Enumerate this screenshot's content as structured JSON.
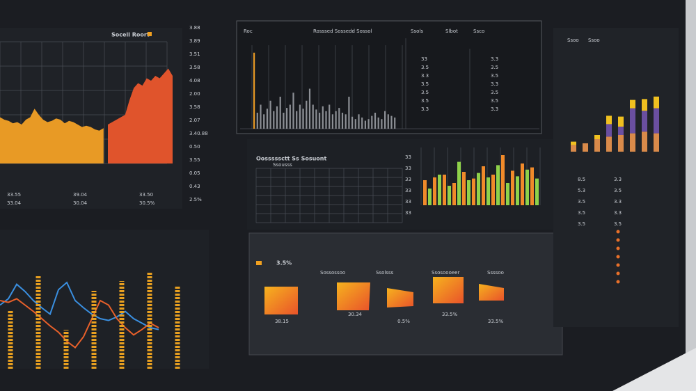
{
  "left_panel": {
    "title": "Socell Roort",
    "scale": [
      "3.88",
      "3.89",
      "3.51",
      "3.58",
      "4.08",
      "2.00",
      "3.58",
      "2.07",
      "3.40.88",
      "0.50",
      "3.55",
      "0.05",
      "0.43",
      "2.5%"
    ],
    "summary": [
      "33.55",
      "39.04",
      "33.50",
      "33.04",
      "30.04",
      "30.5%"
    ],
    "area": {
      "ylim": [
        0,
        100
      ],
      "series": [
        {
          "color": "#e89a25",
          "values": [
            38,
            36,
            35,
            33,
            34,
            32,
            36,
            38,
            45,
            40,
            36,
            34,
            35,
            37,
            36,
            33,
            35,
            34,
            32,
            30,
            31,
            30,
            28,
            27,
            29
          ]
        },
        {
          "color": "#e0542c",
          "values": [
            32,
            34,
            36,
            38,
            40,
            52,
            62,
            66,
            64,
            70,
            68,
            72,
            70,
            74,
            78,
            72
          ]
        }
      ]
    }
  },
  "lines": {
    "ylim": [
      0,
      100
    ],
    "series": [
      {
        "color": "#3a8fe0",
        "values": [
          55,
          62,
          78,
          70,
          60,
          52,
          45,
          72,
          80,
          60,
          52,
          45,
          40,
          38,
          42,
          48,
          40,
          35,
          30,
          28
        ]
      },
      {
        "color": "#e8602a",
        "values": [
          60,
          58,
          62,
          55,
          48,
          40,
          32,
          25,
          15,
          8,
          20,
          40,
          60,
          55,
          40,
          30,
          22,
          28,
          35,
          30
        ]
      }
    ],
    "dashes": {
      "color": "#e8a020",
      "values": [
        60,
        95,
        40,
        80,
        90,
        100,
        85
      ]
    }
  },
  "center_panel": {
    "header": [
      "Roc",
      "Rosssed Sossedd Sossol",
      "Ssols",
      "Slbot",
      "Ssco"
    ],
    "spikes": {
      "color": "#8c8f95",
      "ylim": [
        0,
        100
      ],
      "values": [
        95,
        20,
        30,
        18,
        25,
        35,
        22,
        28,
        40,
        20,
        26,
        30,
        45,
        22,
        30,
        25,
        35,
        50,
        30,
        24,
        20,
        28,
        22,
        30,
        18,
        22,
        26,
        20,
        18,
        40,
        15,
        12,
        18,
        14,
        10,
        12,
        16,
        20,
        14,
        12,
        22,
        18,
        16,
        14
      ]
    },
    "table_a": [
      "33",
      "3.5",
      "3.3",
      "3.5",
      "3.5",
      "3.5",
      "3.3"
    ],
    "table_b": [
      "3.3",
      "3.5",
      "3.5",
      "3.3",
      "3.5",
      "3.5",
      "3.3"
    ]
  },
  "grid_panel": {
    "title": "Oosssssctt Ss Sosuont",
    "subtitle": "Ssousss",
    "scale": [
      "33",
      "33",
      "33",
      "33",
      "33",
      "33"
    ]
  },
  "bars_panel": {
    "ylim": [
      0,
      100
    ],
    "series": [
      {
        "color": "#f08a2a",
        "values": [
          45,
          50,
          55,
          40,
          60,
          48,
          70,
          55,
          90,
          62,
          75,
          68
        ]
      },
      {
        "color": "#8fd24a",
        "values": [
          30,
          55,
          35,
          78,
          45,
          58,
          50,
          72,
          40,
          52,
          64,
          48
        ]
      }
    ]
  },
  "bottom_panel": {
    "title": "3.5%",
    "labels": [
      "Sossossoo",
      "Ssolsss",
      "Ssosoooeer",
      "Ssssoo"
    ],
    "tiles": [
      "38.15",
      "30.34",
      "0.5%",
      "33.5%",
      "33.5%"
    ]
  },
  "right_panel": {
    "header": [
      "Ssoo",
      "Ssoo"
    ],
    "stack": {
      "ylim": [
        0,
        100
      ],
      "series": [
        {
          "color": "#d98a4a",
          "values": [
            8,
            10,
            15,
            18,
            20,
            22,
            24,
            22
          ]
        },
        {
          "color": "#6a4fa0",
          "values": [
            0,
            0,
            0,
            15,
            10,
            30,
            25,
            30
          ]
        },
        {
          "color": "#f0c020",
          "values": [
            4,
            0,
            5,
            10,
            12,
            10,
            14,
            14
          ]
        }
      ]
    },
    "numbers": [
      "8.5",
      "3.3",
      "5.3",
      "3.5",
      "3.5",
      "3.3",
      "3.5",
      "3.3",
      "3.5",
      "3.5"
    ]
  }
}
